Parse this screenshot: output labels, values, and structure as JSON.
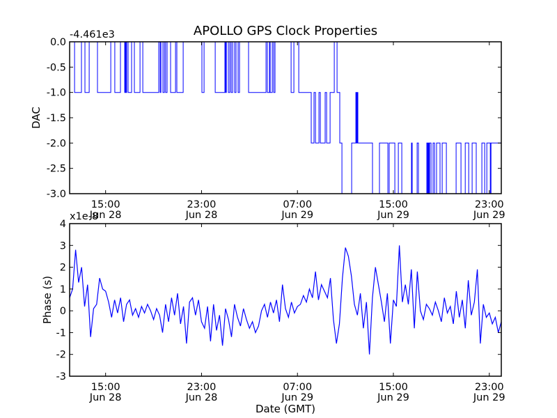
{
  "title": "APOLLO GPS Clock Properties",
  "colors": {
    "series": "#0000ff",
    "axes": "#000000"
  },
  "x_ticks": [
    {
      "hour": 3,
      "time": "15:00",
      "date": "Jun 28"
    },
    {
      "hour": 11,
      "time": "23:00",
      "date": "Jun 28"
    },
    {
      "hour": 19,
      "time": "07:00",
      "date": "Jun 29"
    },
    {
      "hour": 27,
      "time": "15:00",
      "date": "Jun 29"
    },
    {
      "hour": 35,
      "time": "23:00",
      "date": "Jun 29"
    }
  ],
  "chart_data": [
    {
      "type": "line",
      "name": "dac",
      "ylabel": "DAC",
      "offset_label": "-4.461e3",
      "xlim": [
        0,
        36
      ],
      "ylim": [
        -3.0,
        0.0
      ],
      "yticks": [
        "0.0",
        "-0.5",
        "-1.0",
        "-1.5",
        "-2.0",
        "-2.5",
        "-3.0"
      ],
      "ytick_values": [
        0,
        -0.5,
        -1,
        -1.5,
        -2,
        -2.5,
        -3
      ],
      "x_unit": "hours since Jun 28 12:00 GMT",
      "step": true,
      "points": [
        [
          0,
          0
        ],
        [
          0.41,
          -1
        ],
        [
          0.99,
          0
        ],
        [
          1.28,
          -1
        ],
        [
          1.63,
          0
        ],
        [
          2.32,
          -1
        ],
        [
          3.43,
          0
        ],
        [
          3.77,
          -1
        ],
        [
          4.24,
          0
        ],
        [
          4.59,
          -1
        ],
        [
          4.65,
          0
        ],
        [
          4.7,
          -1
        ],
        [
          4.76,
          0
        ],
        [
          4.88,
          -1
        ],
        [
          5.17,
          0
        ],
        [
          5.4,
          -1
        ],
        [
          5.87,
          0
        ],
        [
          6.1,
          -1
        ],
        [
          7.43,
          0
        ],
        [
          7.55,
          -1
        ],
        [
          7.61,
          0
        ],
        [
          7.78,
          -1
        ],
        [
          7.9,
          0
        ],
        [
          8.01,
          -1
        ],
        [
          8.13,
          0
        ],
        [
          8.42,
          -1
        ],
        [
          8.83,
          0
        ],
        [
          8.94,
          -1
        ],
        [
          9.47,
          0
        ],
        [
          11.03,
          -1
        ],
        [
          11.21,
          0
        ],
        [
          12.14,
          -1
        ],
        [
          12.95,
          0
        ],
        [
          13.01,
          -1
        ],
        [
          13.07,
          0
        ],
        [
          13.24,
          -1
        ],
        [
          13.36,
          0
        ],
        [
          13.47,
          -1
        ],
        [
          13.59,
          0
        ],
        [
          13.76,
          -1
        ],
        [
          13.88,
          0
        ],
        [
          14.05,
          -1
        ],
        [
          14.17,
          0
        ],
        [
          14.92,
          -1
        ],
        [
          16.38,
          0
        ],
        [
          16.49,
          -1
        ],
        [
          16.67,
          0
        ],
        [
          16.72,
          -1
        ],
        [
          16.9,
          0
        ],
        [
          17.02,
          -1
        ],
        [
          17.13,
          0
        ],
        [
          18.47,
          -1
        ],
        [
          18.7,
          0
        ],
        [
          19.11,
          -1
        ],
        [
          20.15,
          -2
        ],
        [
          20.38,
          -1
        ],
        [
          20.5,
          -2
        ],
        [
          20.79,
          -1
        ],
        [
          20.91,
          -2
        ],
        [
          21.31,
          -1
        ],
        [
          21.43,
          -2
        ],
        [
          21.72,
          -1
        ],
        [
          22.07,
          0
        ],
        [
          22.3,
          -1
        ],
        [
          22.53,
          -2
        ],
        [
          22.71,
          -3
        ],
        [
          23.52,
          -2
        ],
        [
          23.87,
          -1
        ],
        [
          23.93,
          -2
        ],
        [
          23.98,
          -1
        ],
        [
          24.04,
          -2
        ],
        [
          25.26,
          -3
        ],
        [
          25.84,
          -2
        ],
        [
          26.54,
          -3
        ],
        [
          26.65,
          -2
        ],
        [
          27.12,
          -3
        ],
        [
          27.41,
          -2
        ],
        [
          27.7,
          -3
        ],
        [
          28.51,
          -2
        ],
        [
          28.57,
          -3
        ],
        [
          28.98,
          -2
        ],
        [
          29.09,
          -3
        ],
        [
          29.79,
          -2
        ],
        [
          29.85,
          -3
        ],
        [
          29.91,
          -2
        ],
        [
          29.97,
          -3
        ],
        [
          30.02,
          -2
        ],
        [
          30.14,
          -3
        ],
        [
          30.31,
          -2
        ],
        [
          30.43,
          -3
        ],
        [
          30.6,
          -2
        ],
        [
          30.89,
          -3
        ],
        [
          31.07,
          -2
        ],
        [
          31.42,
          -3
        ],
        [
          32.23,
          -2
        ],
        [
          32.64,
          -3
        ],
        [
          32.99,
          -2
        ],
        [
          33.28,
          -3
        ],
        [
          33.57,
          -2
        ],
        [
          33.91,
          -3
        ],
        [
          34.38,
          -2
        ],
        [
          34.61,
          -3
        ],
        [
          34.79,
          -2
        ],
        [
          35.08,
          -3
        ],
        [
          35.14,
          -2
        ],
        [
          36,
          -2
        ]
      ]
    },
    {
      "type": "line",
      "name": "phase",
      "ylabel": "Phase (s)",
      "xlabel": "Date (GMT)",
      "offset_label": "x1e-8",
      "xlim": [
        0,
        36
      ],
      "ylim": [
        -3,
        4
      ],
      "yticks": [
        "4",
        "3",
        "2",
        "1",
        "0",
        "-1",
        "-2",
        "-3"
      ],
      "ytick_values": [
        4,
        3,
        2,
        1,
        0,
        -1,
        -2,
        -3
      ],
      "x_start": 0,
      "x_step": 0.25,
      "values": [
        0.6,
        1.0,
        2.8,
        1.3,
        2.0,
        0.2,
        1.2,
        -1.2,
        0.1,
        0.3,
        1.5,
        1.0,
        0.9,
        0.4,
        -0.3,
        0.5,
        -0.1,
        0.6,
        -0.5,
        0.3,
        0.5,
        -0.2,
        0.1,
        -0.3,
        0.2,
        -0.1,
        0.3,
        0.0,
        -0.4,
        0.1,
        -0.2,
        -1.0,
        0.3,
        -0.5,
        0.6,
        -0.2,
        0.8,
        -0.6,
        0.2,
        -1.5,
        0.4,
        0.6,
        -0.2,
        0.5,
        -0.5,
        -0.8,
        0.2,
        -1.4,
        0.3,
        -0.9,
        -0.2,
        -1.6,
        0.1,
        -0.4,
        -1.2,
        0.3,
        -0.3,
        -0.7,
        0.1,
        -0.4,
        -0.8,
        -0.5,
        -1.0,
        -0.7,
        0.0,
        0.3,
        -0.3,
        0.4,
        -0.1,
        0.5,
        -0.5,
        1.2,
        0.1,
        -0.3,
        0.4,
        -0.1,
        0.2,
        0.3,
        0.7,
        0.4,
        1.0,
        0.6,
        1.8,
        0.5,
        1.2,
        0.9,
        0.6,
        1.5,
        -0.4,
        -1.5,
        -0.6,
        1.5,
        2.9,
        2.5,
        1.6,
        0.3,
        -0.2,
        0.8,
        -0.8,
        0.4,
        -2.0,
        0.6,
        2.0,
        1.2,
        0.4,
        -0.5,
        0.8,
        -1.5,
        0.5,
        0.2,
        3.0,
        0.4,
        1.2,
        0.3,
        1.9,
        -0.8,
        1.8,
        0.0,
        -0.4,
        0.3,
        0.1,
        -0.2,
        0.4,
        0.0,
        -0.5,
        0.6,
        -0.1,
        0.2,
        -0.6,
        0.9,
        -0.3,
        0.5,
        -0.8,
        1.4,
        -0.2,
        0.4,
        1.9,
        -1.5,
        0.3,
        -0.3,
        -0.1,
        -0.6,
        -0.3,
        -1.0,
        -0.5
      ]
    }
  ]
}
